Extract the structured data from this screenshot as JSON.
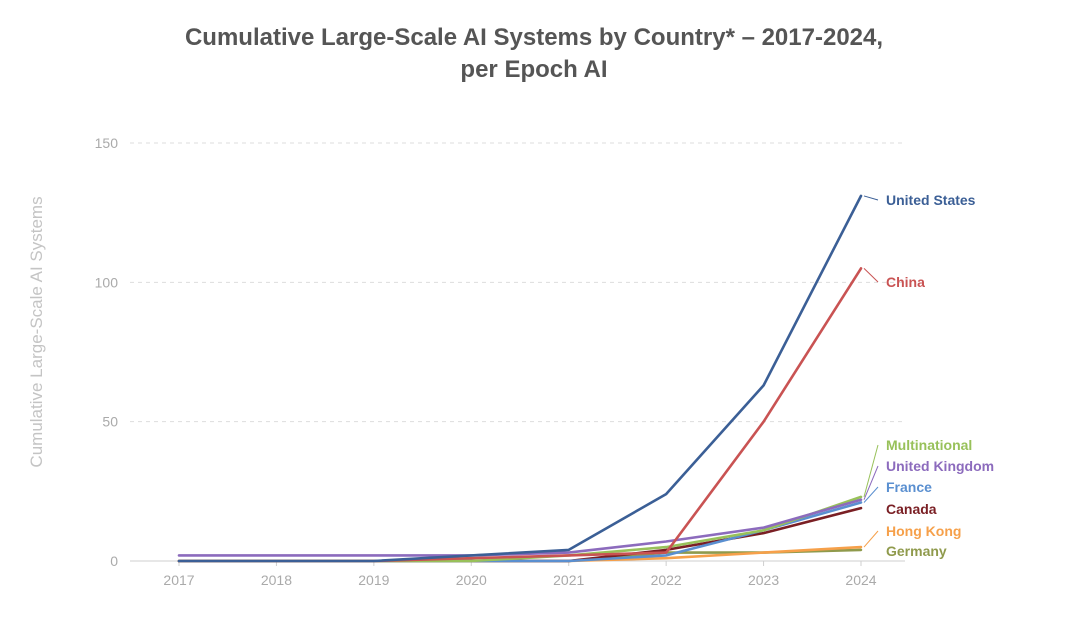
{
  "chart_data": {
    "type": "line",
    "title_lines": [
      "Cumulative Large-Scale AI Systems by Country* – 2017-2024,",
      "per Epoch AI"
    ],
    "xlabel": "",
    "ylabel": "Cumulative Large-Scale AI Systems",
    "x": [
      2017,
      2018,
      2019,
      2020,
      2021,
      2022,
      2023,
      2024
    ],
    "x_tick_labels": [
      "2017",
      "2018",
      "2019",
      "2020",
      "2021",
      "2022",
      "2023",
      "2024"
    ],
    "y_ticks": [
      0,
      50,
      100,
      150
    ],
    "y_tick_labels": [
      "0",
      "50",
      "100",
      "150"
    ],
    "ylim": [
      0,
      150
    ],
    "grid": "horizontal dashed",
    "series": [
      {
        "name": "Germany",
        "color": "#8f9a4c",
        "values": [
          0,
          0,
          0,
          0,
          0,
          3,
          3,
          4
        ]
      },
      {
        "name": "Hong Kong",
        "color": "#f6a04a",
        "values": [
          0,
          0,
          0,
          0,
          0,
          1,
          3,
          5
        ]
      },
      {
        "name": "Canada",
        "color": "#7a1f24",
        "values": [
          0,
          0,
          0,
          0,
          0,
          4,
          10,
          19
        ]
      },
      {
        "name": "France",
        "color": "#5a8fd0",
        "values": [
          0,
          0,
          0,
          0,
          0,
          2,
          11,
          21
        ]
      },
      {
        "name": "Multinational",
        "color": "#98c15a",
        "values": [
          0,
          0,
          0,
          0,
          2,
          5,
          11,
          23
        ]
      },
      {
        "name": "United Kingdom",
        "color": "#8c6bbd",
        "values": [
          2,
          2,
          2,
          2,
          3,
          7,
          12,
          22
        ]
      },
      {
        "name": "China",
        "color": "#c95353",
        "values": [
          0,
          0,
          0,
          1,
          2,
          3,
          50,
          105
        ]
      },
      {
        "name": "United States",
        "color": "#3b5f96",
        "values": [
          0,
          0,
          0,
          2,
          4,
          24,
          63,
          131
        ]
      }
    ],
    "legend": [
      {
        "name": "United States",
        "color": "#3b5f96",
        "series_value": 131
      },
      {
        "name": "China",
        "color": "#c95353",
        "series_value": 105
      },
      {
        "name": "Multinational",
        "color": "#98c15a",
        "series_value": 23
      },
      {
        "name": "United Kingdom",
        "color": "#8c6bbd",
        "series_value": 22
      },
      {
        "name": "France",
        "color": "#5a8fd0",
        "series_value": 21
      },
      {
        "name": "Canada",
        "color": "#7a1f24",
        "series_value": 19
      },
      {
        "name": "Hong Kong",
        "color": "#f6a04a",
        "series_value": 5
      },
      {
        "name": "Germany",
        "color": "#8f9a4c",
        "series_value": 4
      }
    ],
    "legend_placement": "right, labels at line ends"
  }
}
